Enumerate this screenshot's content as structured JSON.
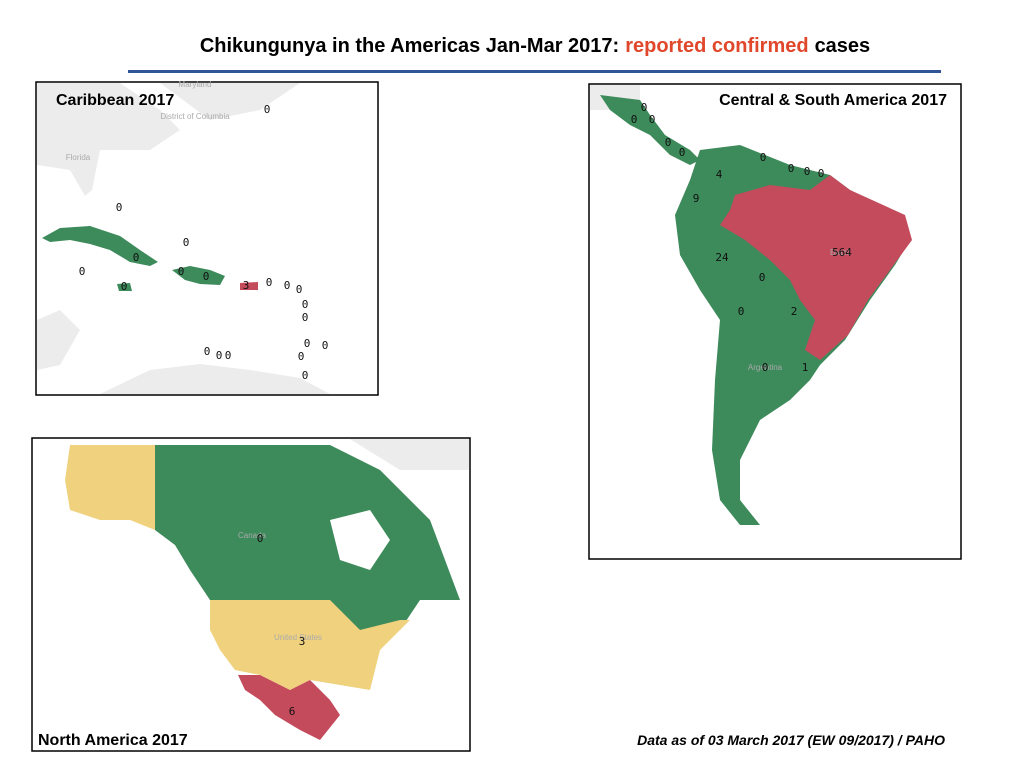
{
  "header": {
    "title_prefix": "Chikungunya in the Americas Jan-Mar 2017:",
    "title_highlight": "reported confirmed",
    "title_suffix": "cases"
  },
  "caribbean": {
    "title": "Caribbean 2017",
    "place_names": [
      "Maryland",
      "District of Columbia",
      "Florida"
    ],
    "labels": [
      0,
      0,
      0,
      0,
      0,
      0,
      0,
      0,
      3,
      0,
      0,
      0,
      0,
      0,
      0,
      0,
      0,
      0,
      0,
      0,
      0
    ]
  },
  "central_south_america": {
    "title": "Central & South America 2017",
    "place_names": [
      "Brazil",
      "Argentina"
    ],
    "labels": [
      0,
      0,
      0,
      0,
      0,
      0,
      4,
      0,
      0,
      0,
      9,
      564,
      24,
      0,
      0,
      2,
      1,
      0
    ]
  },
  "north_america": {
    "title": "North America 2017",
    "place_names": [
      "Canada",
      "United States"
    ],
    "labels": [
      0,
      3,
      6
    ]
  },
  "footer": "Data as of 03 March 2017 (EW 09/2017) / PAHO"
}
